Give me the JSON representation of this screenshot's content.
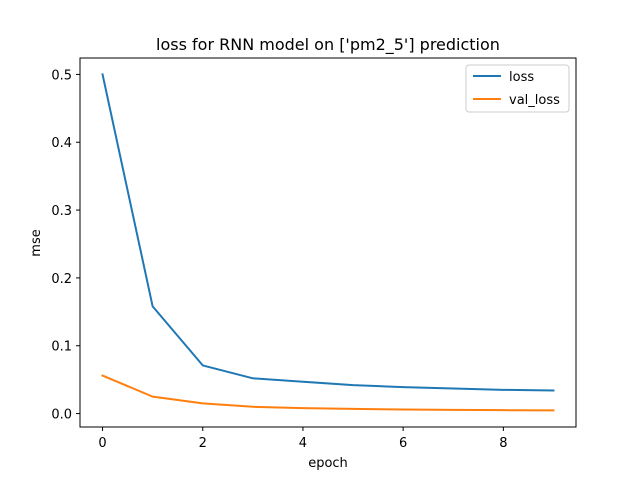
{
  "chart_data": {
    "type": "line",
    "title": "loss for RNN model on ['pm2_5'] prediction",
    "xlabel": "epoch",
    "ylabel": "mse",
    "x": [
      0,
      1,
      2,
      3,
      4,
      5,
      6,
      7,
      8,
      9
    ],
    "xlim": [
      -0.45,
      9.45
    ],
    "ylim": [
      -0.0198,
      0.5242
    ],
    "xticks": [
      0,
      2,
      4,
      6,
      8
    ],
    "xtick_labels": [
      "0",
      "2",
      "4",
      "6",
      "8"
    ],
    "yticks": [
      0.0,
      0.1,
      0.2,
      0.3,
      0.4,
      0.5
    ],
    "ytick_labels": [
      "0.0",
      "0.1",
      "0.2",
      "0.3",
      "0.4",
      "0.5"
    ],
    "grid": false,
    "legend_position": "upper right",
    "series": [
      {
        "name": "loss",
        "color": "#1f77b4",
        "values": [
          0.5,
          0.158,
          0.071,
          0.052,
          0.047,
          0.042,
          0.039,
          0.037,
          0.035,
          0.034
        ]
      },
      {
        "name": "val_loss",
        "color": "#ff7f0e",
        "values": [
          0.056,
          0.025,
          0.015,
          0.01,
          0.008,
          0.007,
          0.006,
          0.0055,
          0.005,
          0.0048
        ]
      }
    ]
  }
}
